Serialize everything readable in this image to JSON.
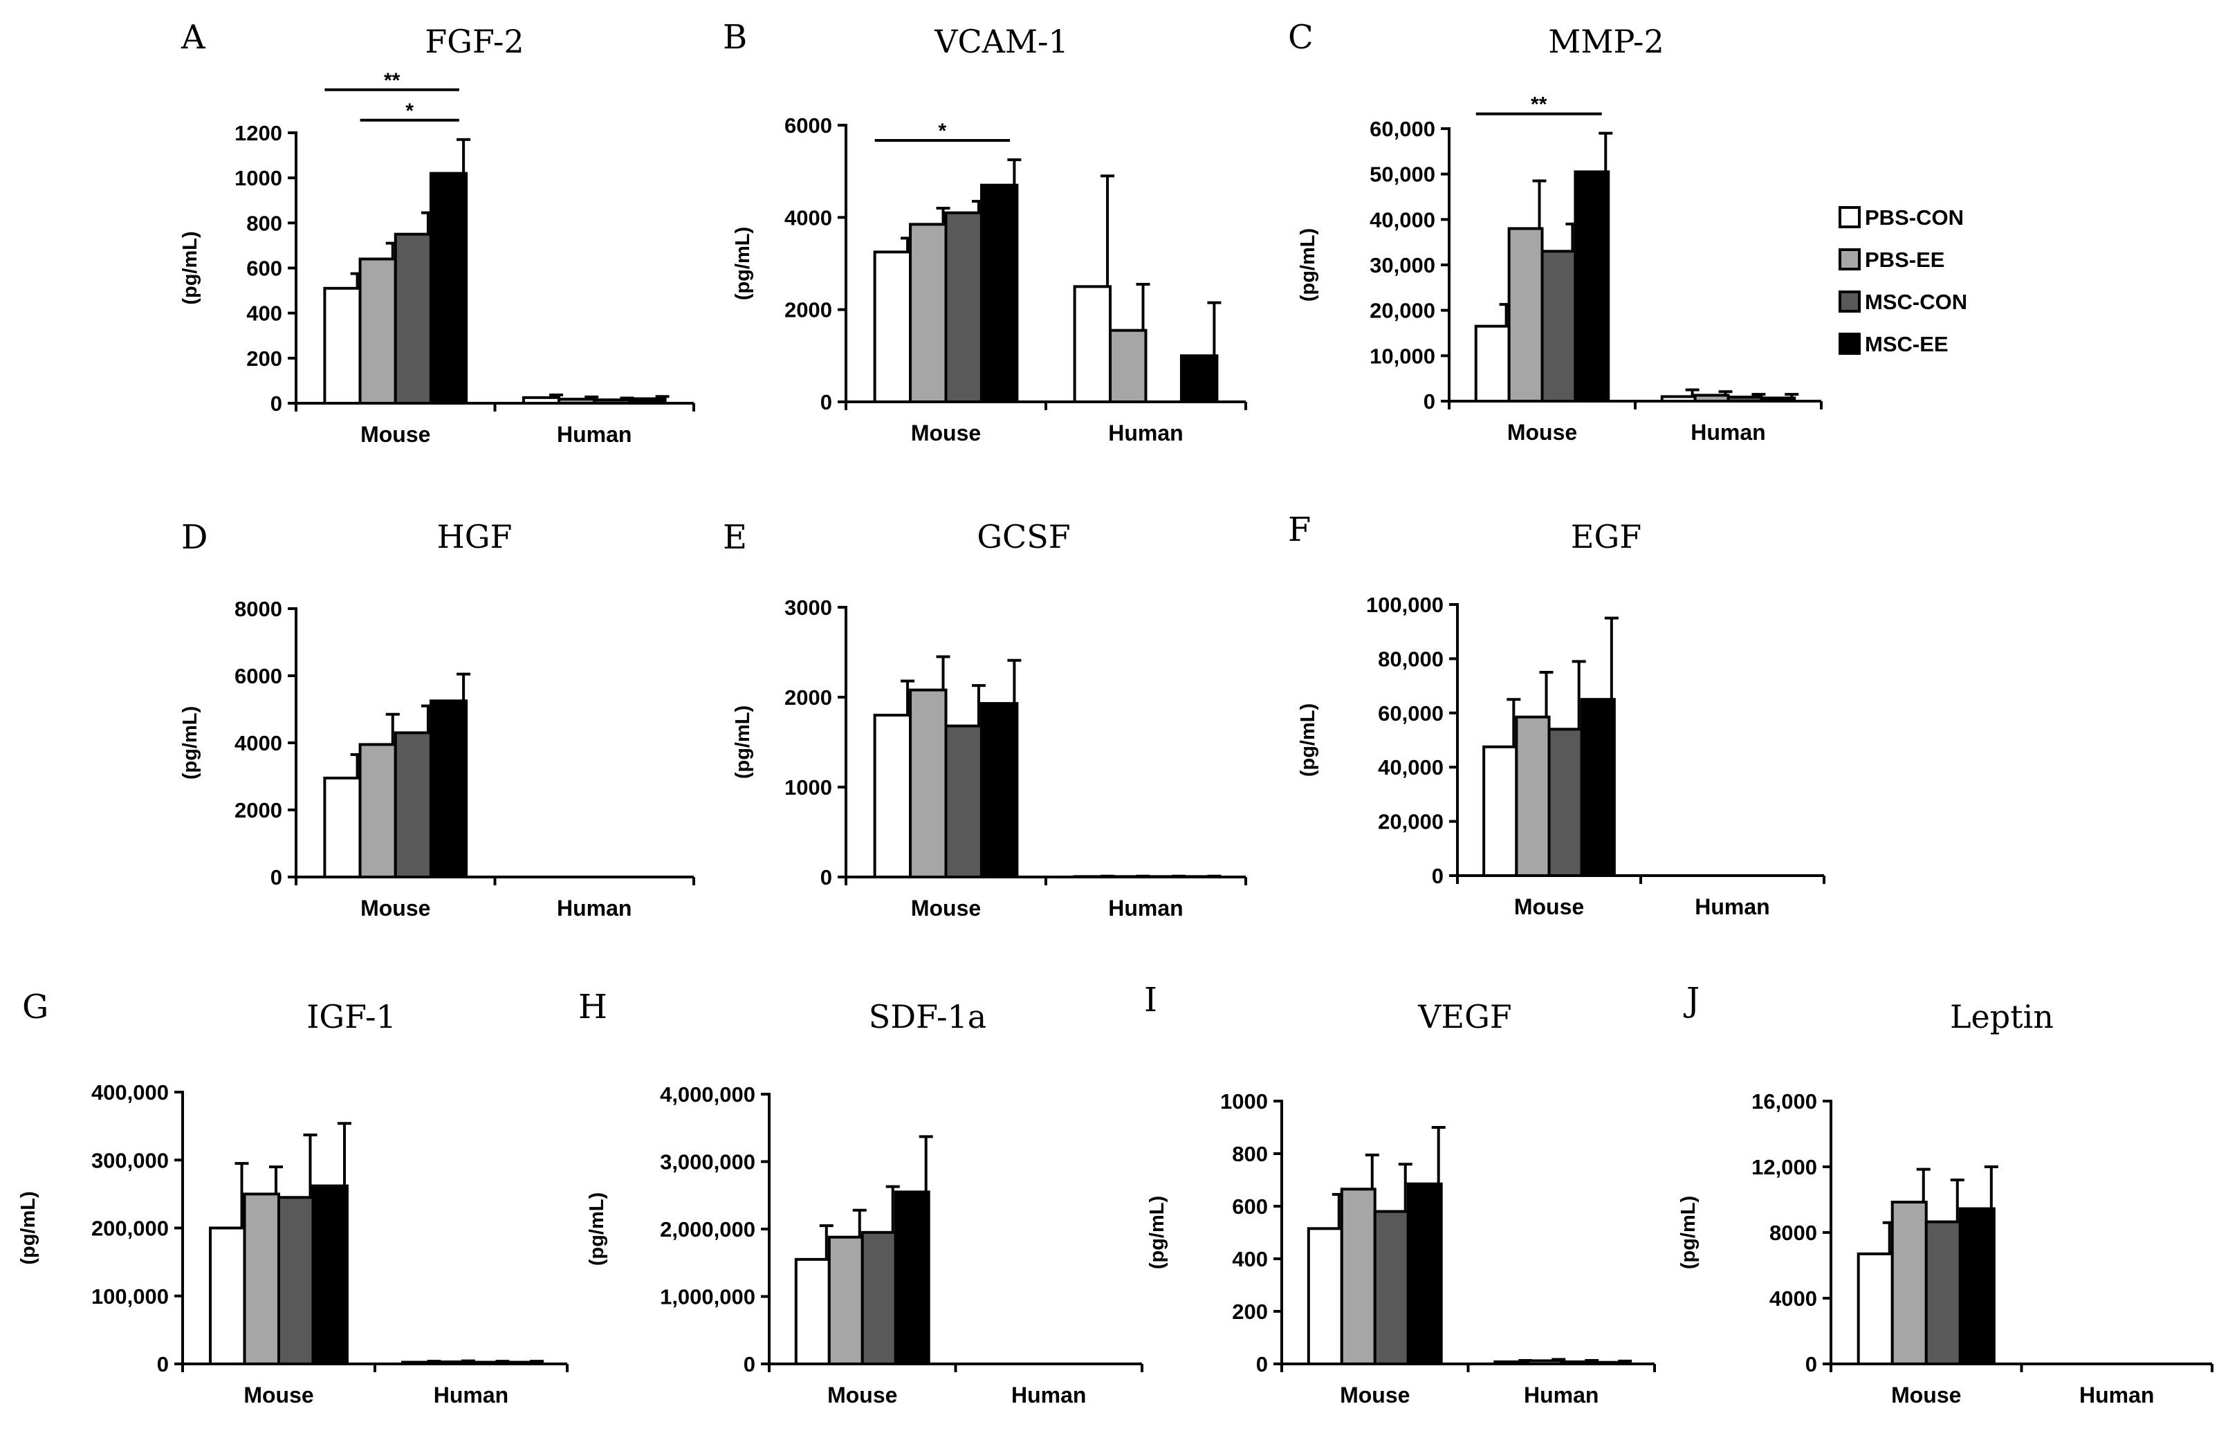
{
  "figure": {
    "legend": [
      {
        "label": "PBS-CON",
        "color": "#ffffff"
      },
      {
        "label": "PBS-EE",
        "color": "#a6a6a6"
      },
      {
        "label": "MSC-CON",
        "color": "#595959"
      },
      {
        "label": "MSC-EE",
        "color": "#000000"
      }
    ]
  },
  "chart_data": [
    {
      "panel": "A",
      "type": "bar",
      "title": "FGF-2",
      "ylabel": "(pg/mL)",
      "categories": [
        "Mouse",
        "Human"
      ],
      "ylim": [
        0,
        1200
      ],
      "yticks": [
        "0",
        "200",
        "400",
        "600",
        "800",
        "1000",
        "1200"
      ],
      "series": [
        {
          "name": "PBS-CON",
          "values": [
            510,
            25
          ],
          "errors": [
            65,
            12
          ]
        },
        {
          "name": "PBS-EE",
          "values": [
            640,
            18
          ],
          "errors": [
            70,
            10
          ]
        },
        {
          "name": "MSC-CON",
          "values": [
            750,
            15
          ],
          "errors": [
            95,
            8
          ]
        },
        {
          "name": "MSC-EE",
          "values": [
            1020,
            20
          ],
          "errors": [
            150,
            10
          ]
        }
      ],
      "significance": [
        {
          "from": "PBS-CON",
          "to": "MSC-EE",
          "label": "**"
        },
        {
          "from": "PBS-EE",
          "to": "MSC-EE",
          "label": "*"
        }
      ]
    },
    {
      "panel": "B",
      "type": "bar",
      "title": "VCAM-1",
      "ylabel": "(pg/mL)",
      "categories": [
        "Mouse",
        "Human"
      ],
      "ylim": [
        0,
        6000
      ],
      "yticks": [
        "0",
        "2000",
        "4000",
        "6000"
      ],
      "series": [
        {
          "name": "PBS-CON",
          "values": [
            3250,
            2500
          ],
          "errors": [
            300,
            2400
          ]
        },
        {
          "name": "PBS-EE",
          "values": [
            3850,
            1550
          ],
          "errors": [
            350,
            1000
          ]
        },
        {
          "name": "MSC-CON",
          "values": [
            4100,
            0
          ],
          "errors": [
            250,
            0
          ]
        },
        {
          "name": "MSC-EE",
          "values": [
            4700,
            1000
          ],
          "errors": [
            550,
            1150
          ]
        }
      ],
      "significance": [
        {
          "from": "PBS-CON",
          "to": "MSC-EE",
          "label": "*"
        }
      ]
    },
    {
      "panel": "C",
      "type": "bar",
      "title": "MMP-2",
      "ylabel": "(pg/mL)",
      "categories": [
        "Mouse",
        "Human"
      ],
      "ylim": [
        0,
        60000
      ],
      "yticks": [
        "0",
        "10,000",
        "20,000",
        "30,000",
        "40,000",
        "50,000",
        "60,000"
      ],
      "series": [
        {
          "name": "PBS-CON",
          "values": [
            16500,
            1000
          ],
          "errors": [
            4800,
            1500
          ]
        },
        {
          "name": "PBS-EE",
          "values": [
            38000,
            1300
          ],
          "errors": [
            10500,
            800
          ]
        },
        {
          "name": "MSC-CON",
          "values": [
            33000,
            900
          ],
          "errors": [
            6000,
            600
          ]
        },
        {
          "name": "MSC-EE",
          "values": [
            50500,
            700
          ],
          "errors": [
            8500,
            800
          ]
        }
      ],
      "significance": [
        {
          "from": "PBS-CON",
          "to": "MSC-EE",
          "label": "**"
        }
      ]
    },
    {
      "panel": "D",
      "type": "bar",
      "title": "HGF",
      "ylabel": "(pg/mL)",
      "categories": [
        "Mouse",
        "Human"
      ],
      "ylim": [
        0,
        8000
      ],
      "yticks": [
        "0",
        "2000",
        "4000",
        "6000",
        "8000"
      ],
      "series": [
        {
          "name": "PBS-CON",
          "values": [
            2950,
            0
          ],
          "errors": [
            700,
            0
          ]
        },
        {
          "name": "PBS-EE",
          "values": [
            3950,
            0
          ],
          "errors": [
            900,
            0
          ]
        },
        {
          "name": "MSC-CON",
          "values": [
            4300,
            0
          ],
          "errors": [
            800,
            0
          ]
        },
        {
          "name": "MSC-EE",
          "values": [
            5250,
            0
          ],
          "errors": [
            800,
            0
          ]
        }
      ],
      "significance": []
    },
    {
      "panel": "E",
      "type": "bar",
      "title": "GCSF",
      "ylabel": "(pg/mL)",
      "categories": [
        "Mouse",
        "Human"
      ],
      "ylim": [
        0,
        3000
      ],
      "yticks": [
        "0",
        "1000",
        "2000",
        "3000"
      ],
      "series": [
        {
          "name": "PBS-CON",
          "values": [
            1800,
            5
          ],
          "errors": [
            380,
            5
          ]
        },
        {
          "name": "PBS-EE",
          "values": [
            2080,
            5
          ],
          "errors": [
            370,
            5
          ]
        },
        {
          "name": "MSC-CON",
          "values": [
            1680,
            5
          ],
          "errors": [
            450,
            5
          ]
        },
        {
          "name": "MSC-EE",
          "values": [
            1930,
            5
          ],
          "errors": [
            480,
            5
          ]
        }
      ],
      "significance": []
    },
    {
      "panel": "F",
      "type": "bar",
      "title": "EGF",
      "ylabel": "(pg/mL)",
      "categories": [
        "Mouse",
        "Human"
      ],
      "ylim": [
        0,
        100000
      ],
      "yticks": [
        "0",
        "20,000",
        "40,000",
        "60,000",
        "80,000",
        "100,000"
      ],
      "series": [
        {
          "name": "PBS-CON",
          "values": [
            47500,
            0
          ],
          "errors": [
            17500,
            0
          ]
        },
        {
          "name": "PBS-EE",
          "values": [
            58500,
            0
          ],
          "errors": [
            16500,
            0
          ]
        },
        {
          "name": "MSC-CON",
          "values": [
            54000,
            0
          ],
          "errors": [
            25000,
            0
          ]
        },
        {
          "name": "MSC-EE",
          "values": [
            65000,
            0
          ],
          "errors": [
            30000,
            0
          ]
        }
      ],
      "significance": []
    },
    {
      "panel": "G",
      "type": "bar",
      "title": "IGF-1",
      "ylabel": "(pg/mL)",
      "categories": [
        "Mouse",
        "Human"
      ],
      "ylim": [
        0,
        400000
      ],
      "yticks": [
        "0",
        "100,000",
        "200,000",
        "300,000",
        "400,000"
      ],
      "series": [
        {
          "name": "PBS-CON",
          "values": [
            200000,
            2500
          ],
          "errors": [
            95000,
            1500
          ]
        },
        {
          "name": "PBS-EE",
          "values": [
            250000,
            3000
          ],
          "errors": [
            40000,
            1500
          ]
        },
        {
          "name": "MSC-CON",
          "values": [
            245000,
            2500
          ],
          "errors": [
            92000,
            1500
          ]
        },
        {
          "name": "MSC-EE",
          "values": [
            262000,
            2500
          ],
          "errors": [
            92000,
            1500
          ]
        }
      ],
      "significance": []
    },
    {
      "panel": "H",
      "type": "bar",
      "title": "SDF-1a",
      "ylabel": "(pg/mL)",
      "categories": [
        "Mouse",
        "Human"
      ],
      "ylim": [
        0,
        4000000
      ],
      "yticks": [
        "0",
        "1,000,000",
        "2,000,000",
        "3,000,000",
        "4,000,000"
      ],
      "series": [
        {
          "name": "PBS-CON",
          "values": [
            1550000,
            0
          ],
          "errors": [
            500000,
            0
          ]
        },
        {
          "name": "PBS-EE",
          "values": [
            1880000,
            0
          ],
          "errors": [
            400000,
            0
          ]
        },
        {
          "name": "MSC-CON",
          "values": [
            1950000,
            0
          ],
          "errors": [
            680000,
            0
          ]
        },
        {
          "name": "MSC-EE",
          "values": [
            2550000,
            0
          ],
          "errors": [
            820000,
            0
          ]
        }
      ],
      "significance": []
    },
    {
      "panel": "I",
      "type": "bar",
      "title": "VEGF",
      "ylabel": "(pg/mL)",
      "categories": [
        "Mouse",
        "Human"
      ],
      "ylim": [
        0,
        1000
      ],
      "yticks": [
        "0",
        "200",
        "400",
        "600",
        "800",
        "1000"
      ],
      "series": [
        {
          "name": "PBS-CON",
          "values": [
            515,
            8
          ],
          "errors": [
            130,
            5
          ]
        },
        {
          "name": "PBS-EE",
          "values": [
            665,
            12
          ],
          "errors": [
            130,
            5
          ]
        },
        {
          "name": "MSC-CON",
          "values": [
            580,
            8
          ],
          "errors": [
            180,
            5
          ]
        },
        {
          "name": "MSC-EE",
          "values": [
            685,
            6
          ],
          "errors": [
            215,
            5
          ]
        }
      ],
      "significance": []
    },
    {
      "panel": "J",
      "type": "bar",
      "title": "Leptin",
      "ylabel": "(pg/mL)",
      "categories": [
        "Mouse",
        "Human"
      ],
      "ylim": [
        0,
        16000
      ],
      "yticks": [
        "0",
        "4000",
        "8000",
        "12,000",
        "16,000"
      ],
      "series": [
        {
          "name": "PBS-CON",
          "values": [
            6700,
            0
          ],
          "errors": [
            1900,
            0
          ]
        },
        {
          "name": "PBS-EE",
          "values": [
            9850,
            0
          ],
          "errors": [
            2000,
            0
          ]
        },
        {
          "name": "MSC-CON",
          "values": [
            8650,
            0
          ],
          "errors": [
            2550,
            0
          ]
        },
        {
          "name": "MSC-EE",
          "values": [
            9450,
            0
          ],
          "errors": [
            2550,
            0
          ]
        }
      ],
      "significance": []
    }
  ]
}
